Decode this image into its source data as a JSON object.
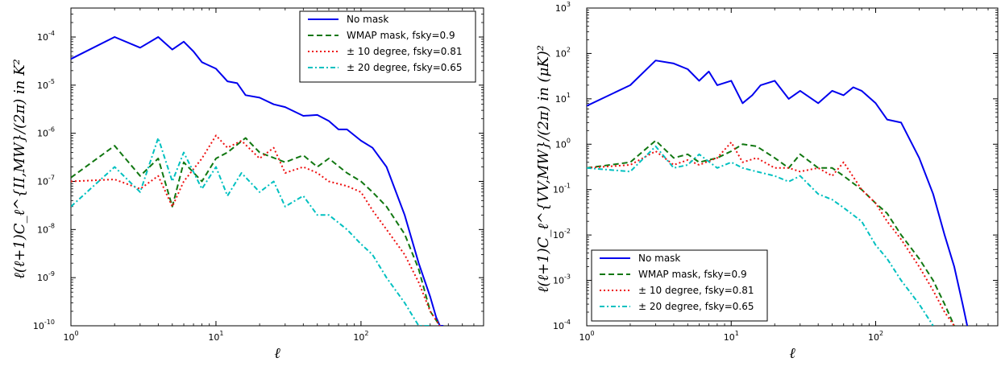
{
  "colors": {
    "no_mask": "#0000ee",
    "wmap": "#117711",
    "deg10": "#ee1111",
    "deg20": "#00c0c0"
  },
  "chart_data": [
    {
      "type": "line",
      "x_scale": "log",
      "y_scale": "log",
      "xlim": [
        1,
        700
      ],
      "ylim": [
        1e-10,
        0.0004
      ],
      "xlabel": "ℓ",
      "ylabel": "ℓ(ℓ+1)C_ℓ^{II,MW}/(2π) in K²",
      "x_ticks": [
        {
          "v": 1,
          "m": "10",
          "e": "0"
        },
        {
          "v": 10,
          "m": "10",
          "e": "1"
        },
        {
          "v": 100,
          "m": "10",
          "e": "2"
        }
      ],
      "y_ticks": [
        {
          "v": 1e-10,
          "m": "10",
          "e": "-10"
        },
        {
          "v": 1e-09,
          "m": "10",
          "e": "-9"
        },
        {
          "v": 1e-08,
          "m": "10",
          "e": "-8"
        },
        {
          "v": 1e-07,
          "m": "10",
          "e": "-7"
        },
        {
          "v": 1e-06,
          "m": "10",
          "e": "-6"
        },
        {
          "v": 1e-05,
          "m": "10",
          "e": "-5"
        },
        {
          "v": 0.0001,
          "m": "10",
          "e": "-4"
        }
      ],
      "legend_position": "top-right",
      "series": [
        {
          "name": "No mask",
          "style": "solid",
          "x": [
            1,
            2,
            3,
            4,
            5,
            6,
            7,
            8,
            10,
            12,
            14,
            16,
            20,
            25,
            30,
            40,
            50,
            60,
            70,
            80,
            100,
            120,
            150,
            200,
            250,
            300,
            330,
            350,
            370
          ],
          "y": [
            3.5e-05,
            0.0001,
            6e-05,
            0.0001,
            5.5e-05,
            8e-05,
            5e-05,
            3e-05,
            2.2e-05,
            1.2e-05,
            1.1e-05,
            6.2e-06,
            5.5e-06,
            4e-06,
            3.5e-06,
            2.3e-06,
            2.4e-06,
            1.8e-06,
            1.2e-06,
            1.2e-06,
            7e-07,
            5e-07,
            2e-07,
            2e-08,
            2e-09,
            4e-10,
            1.5e-10,
            1e-10,
            1e-10
          ]
        },
        {
          "name": "WMAP mask, fsky=0.9",
          "style": "dashed",
          "x": [
            1,
            2,
            3,
            4,
            5,
            6,
            8,
            10,
            12,
            16,
            20,
            30,
            40,
            50,
            60,
            80,
            100,
            120,
            150,
            200,
            250,
            300,
            350
          ],
          "y": [
            1.2e-07,
            5.5e-07,
            1.3e-07,
            3e-07,
            3e-08,
            2.5e-07,
            1e-07,
            3e-07,
            4e-07,
            8e-07,
            4e-07,
            2.5e-07,
            3.5e-07,
            2e-07,
            3e-07,
            1.5e-07,
            1e-07,
            6e-08,
            3e-08,
            8e-09,
            1.5e-09,
            2e-10,
            1e-10
          ]
        },
        {
          "name": "± 10 degree, fsky=0.81",
          "style": "dotted",
          "x": [
            1,
            2,
            3,
            4,
            5,
            6,
            8,
            10,
            12,
            15,
            20,
            25,
            30,
            40,
            50,
            60,
            80,
            100,
            120,
            150,
            200,
            250,
            300,
            350
          ],
          "y": [
            1e-07,
            1.1e-07,
            7e-08,
            1.3e-07,
            3e-08,
            1e-07,
            3e-07,
            9e-07,
            5e-07,
            7e-07,
            3e-07,
            5e-07,
            1.5e-07,
            2e-07,
            1.5e-07,
            1e-07,
            8e-08,
            6e-08,
            2.5e-08,
            1e-08,
            3e-09,
            8e-10,
            2e-10,
            1e-10
          ]
        },
        {
          "name": "± 20 degree, fsky=0.65",
          "style": "dashdot",
          "x": [
            1,
            2,
            3,
            4,
            5,
            6,
            8,
            10,
            12,
            15,
            20,
            25,
            30,
            40,
            50,
            60,
            80,
            100,
            120,
            150,
            200,
            250,
            300
          ],
          "y": [
            3e-08,
            2e-07,
            6e-08,
            8e-07,
            1e-07,
            4e-07,
            7e-08,
            2e-07,
            5e-08,
            1.5e-07,
            6e-08,
            1e-07,
            3e-08,
            5e-08,
            2e-08,
            2e-08,
            1e-08,
            5e-09,
            3e-09,
            1e-09,
            3e-10,
            1e-10,
            1e-10
          ]
        }
      ]
    },
    {
      "type": "line",
      "x_scale": "log",
      "y_scale": "log",
      "xlim": [
        1,
        700
      ],
      "ylim": [
        0.0001,
        1000.0
      ],
      "xlabel": "ℓ",
      "ylabel": "ℓ(ℓ+1)C_ℓ^{VV,MW}/(2π) in (μK)²",
      "x_ticks": [
        {
          "v": 1,
          "m": "10",
          "e": "0"
        },
        {
          "v": 10,
          "m": "10",
          "e": "1"
        },
        {
          "v": 100,
          "m": "10",
          "e": "2"
        }
      ],
      "y_ticks": [
        {
          "v": 0.0001,
          "m": "10",
          "e": "-4"
        },
        {
          "v": 0.001,
          "m": "10",
          "e": "-3"
        },
        {
          "v": 0.01,
          "m": "10",
          "e": "-2"
        },
        {
          "v": 0.1,
          "m": "10",
          "e": "-1"
        },
        {
          "v": 1,
          "m": "10",
          "e": "0"
        },
        {
          "v": 10,
          "m": "10",
          "e": "1"
        },
        {
          "v": 100,
          "m": "10",
          "e": "2"
        },
        {
          "v": 1000,
          "m": "10",
          "e": "3"
        }
      ],
      "legend_position": "bottom-left",
      "series": [
        {
          "name": "No mask",
          "style": "solid",
          "x": [
            1,
            2,
            3,
            4,
            5,
            6,
            7,
            8,
            10,
            12,
            14,
            16,
            20,
            25,
            30,
            40,
            50,
            60,
            70,
            80,
            100,
            120,
            150,
            200,
            250,
            300,
            350,
            400,
            430
          ],
          "y": [
            7,
            20,
            70,
            60,
            45,
            25,
            40,
            20,
            25,
            8,
            12,
            20,
            25,
            10,
            15,
            8,
            15,
            12,
            18,
            15,
            8,
            3.5,
            3,
            0.5,
            0.08,
            0.01,
            0.002,
            0.0003,
            0.0001
          ]
        },
        {
          "name": "WMAP mask, fsky=0.9",
          "style": "dashed",
          "x": [
            1,
            2,
            3,
            4,
            5,
            6,
            8,
            10,
            12,
            15,
            20,
            25,
            30,
            40,
            50,
            60,
            80,
            100,
            120,
            150,
            200,
            250,
            300,
            350
          ],
          "y": [
            0.3,
            0.4,
            1.2,
            0.5,
            0.6,
            0.4,
            0.5,
            0.7,
            1,
            0.9,
            0.5,
            0.3,
            0.6,
            0.3,
            0.3,
            0.2,
            0.1,
            0.05,
            0.03,
            0.01,
            0.003,
            0.001,
            0.0003,
            0.0001
          ]
        },
        {
          "name": "± 10 degree, fsky=0.81",
          "style": "dotted",
          "x": [
            1,
            2,
            3,
            4,
            5,
            6,
            8,
            10,
            12,
            15,
            20,
            25,
            30,
            40,
            50,
            60,
            80,
            100,
            120,
            150,
            200,
            250,
            300,
            350
          ],
          "y": [
            0.3,
            0.35,
            0.7,
            0.35,
            0.45,
            0.35,
            0.5,
            1.1,
            0.4,
            0.5,
            0.3,
            0.3,
            0.25,
            0.3,
            0.2,
            0.4,
            0.1,
            0.05,
            0.02,
            0.008,
            0.002,
            0.0006,
            0.0002,
            0.0001
          ]
        },
        {
          "name": "± 20 degree, fsky=0.65",
          "style": "dashdot",
          "x": [
            1,
            2,
            3,
            4,
            5,
            6,
            8,
            10,
            12,
            15,
            20,
            25,
            30,
            40,
            50,
            60,
            80,
            100,
            120,
            150,
            200,
            250
          ],
          "y": [
            0.3,
            0.25,
            0.9,
            0.3,
            0.35,
            0.6,
            0.3,
            0.4,
            0.3,
            0.25,
            0.2,
            0.15,
            0.2,
            0.08,
            0.06,
            0.04,
            0.02,
            0.006,
            0.003,
            0.001,
            0.0003,
            0.0001
          ]
        }
      ]
    }
  ]
}
